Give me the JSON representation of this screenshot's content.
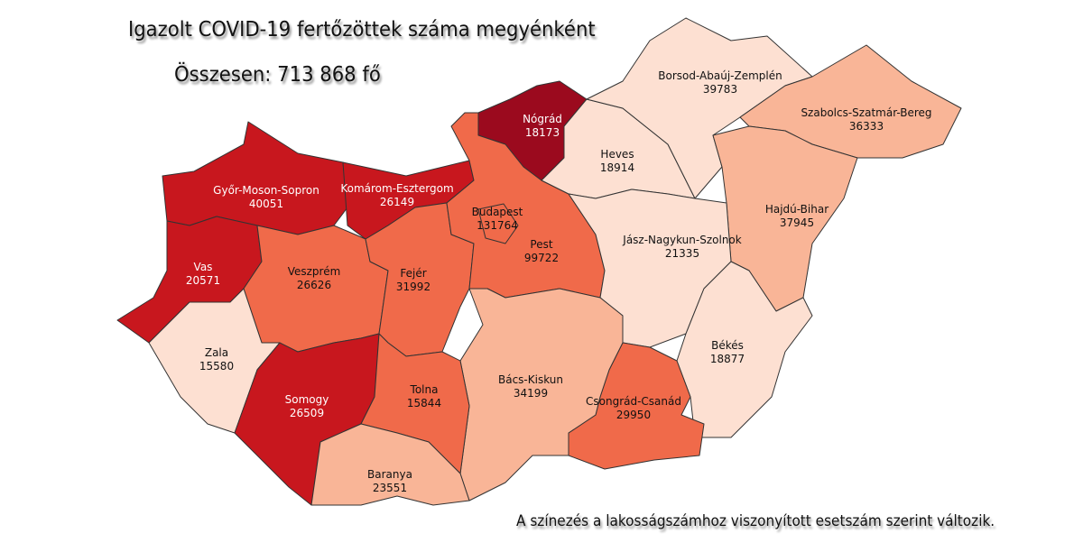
{
  "title": "Igazolt COVID-19 fertőzöttek száma megyénként",
  "total": "Összesen: 713 868 fő",
  "note": "A színezés a lakosságszámhoz viszonyított esetszám szerint változik.",
  "colors": {
    "level5": "#9b0a1e",
    "level4": "#c8171e",
    "level3": "#f06a4a",
    "level2": "#f9b597",
    "level1": "#fde0d2"
  },
  "counties": [
    {
      "id": "gyor",
      "name": "Győr-Moson-Sopron",
      "cases": "40051",
      "level": "level4"
    },
    {
      "id": "komarom",
      "name": "Komárom-Esztergom",
      "cases": "26149",
      "level": "level4"
    },
    {
      "id": "vas",
      "name": "Vas",
      "cases": "20571",
      "level": "level4"
    },
    {
      "id": "veszprem",
      "name": "Veszprém",
      "cases": "26626",
      "level": "level3"
    },
    {
      "id": "zala",
      "name": "Zala",
      "cases": "15580",
      "level": "level1"
    },
    {
      "id": "somogy",
      "name": "Somogy",
      "cases": "26509",
      "level": "level4"
    },
    {
      "id": "fejer",
      "name": "Fejér",
      "cases": "31992",
      "level": "level3"
    },
    {
      "id": "nograd",
      "name": "Nógrád",
      "cases": "18173",
      "level": "level5"
    },
    {
      "id": "pest",
      "name": "Pest",
      "cases": "99722",
      "level": "level3"
    },
    {
      "id": "budapest",
      "name": "Budapest",
      "cases": "131764",
      "level": "level3"
    },
    {
      "id": "heves",
      "name": "Heves",
      "cases": "18914",
      "level": "level1"
    },
    {
      "id": "borsod",
      "name": "Borsod-Abaúj-Zemplén",
      "cases": "39783",
      "level": "level1"
    },
    {
      "id": "szabolcs",
      "name": "Szabolcs-Szatmár-Bereg",
      "cases": "36333",
      "level": "level2"
    },
    {
      "id": "hajdu",
      "name": "Hajdú-Bihar",
      "cases": "37945",
      "level": "level2"
    },
    {
      "id": "jasz",
      "name": "Jász-Nagykun-Szolnok",
      "cases": "21335",
      "level": "level1"
    },
    {
      "id": "bekes",
      "name": "Békés",
      "cases": "18877",
      "level": "level1"
    },
    {
      "id": "csongrad",
      "name": "Csongrád-Csanád",
      "cases": "29950",
      "level": "level3"
    },
    {
      "id": "bacs",
      "name": "Bács-Kiskun",
      "cases": "34199",
      "level": "level2"
    },
    {
      "id": "tolna",
      "name": "Tolna",
      "cases": "15844",
      "level": "level3"
    },
    {
      "id": "baranya",
      "name": "Baranya",
      "cases": "23551",
      "level": "level2"
    }
  ]
}
